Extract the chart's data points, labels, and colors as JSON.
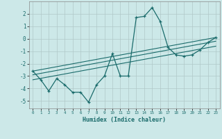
{
  "xlabel": "Humidex (Indice chaleur)",
  "bg_color": "#cce8e8",
  "grid_color": "#b0c8c8",
  "line_color": "#1a6b6b",
  "xlim": [
    -0.5,
    23.5
  ],
  "ylim": [
    -5.6,
    3.0
  ],
  "yticks": [
    -5,
    -4,
    -3,
    -2,
    -1,
    0,
    1,
    2
  ],
  "xticks": [
    0,
    1,
    2,
    3,
    4,
    5,
    6,
    7,
    8,
    9,
    10,
    11,
    12,
    13,
    14,
    15,
    16,
    17,
    18,
    19,
    20,
    21,
    22,
    23
  ],
  "series1_x": [
    0,
    1,
    2,
    3,
    4,
    5,
    6,
    7,
    8,
    9,
    10,
    11,
    12,
    13,
    14,
    15,
    16,
    17,
    18,
    19,
    20,
    21,
    22,
    23
  ],
  "series1_y": [
    -2.6,
    -3.3,
    -4.2,
    -3.2,
    -3.7,
    -4.3,
    -4.3,
    -5.1,
    -3.7,
    -3.0,
    -1.2,
    -3.0,
    -3.0,
    1.7,
    1.8,
    2.5,
    1.4,
    -0.7,
    -1.3,
    -1.4,
    -1.3,
    -0.9,
    -0.3,
    0.1
  ],
  "series2_x": [
    0,
    23
  ],
  "series2_y": [
    -2.6,
    0.1
  ],
  "series3_x": [
    0,
    23
  ],
  "series3_y": [
    -2.9,
    -0.2
  ],
  "series4_x": [
    0,
    23
  ],
  "series4_y": [
    -3.3,
    -0.6
  ]
}
